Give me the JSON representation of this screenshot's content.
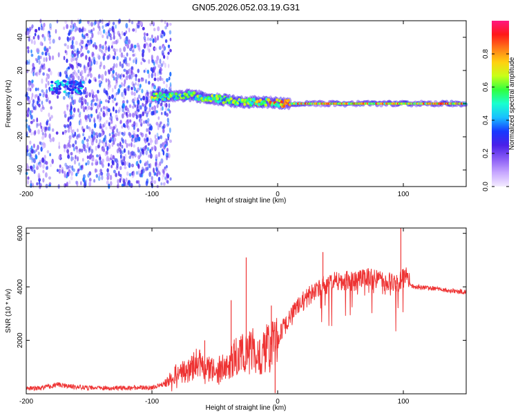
{
  "title": "GN05.2026.052.03.19.G31",
  "colors": {
    "snr_line": "#ee3333",
    "frame": "#000000",
    "sat_lowband": "#6a2be0",
    "sat_diffuse": "#a070f0",
    "colormap": [
      "#f4ecff",
      "#c8a8ff",
      "#8a5cf5",
      "#4a20e8",
      "#1838ff",
      "#18c0ff",
      "#18ffd0",
      "#30ff40",
      "#c8ff18",
      "#ffd010",
      "#ff7a18",
      "#ff1818",
      "#ff1880"
    ]
  },
  "chart_data": [
    {
      "type": "heatmap",
      "xlabel": "Height of straight line (km)",
      "ylabel": "Frequency (Hz)",
      "xlim": [
        -200,
        150
      ],
      "ylim": [
        -50,
        50
      ],
      "x_ticks": [
        -200,
        -100,
        0,
        100
      ],
      "x_tick_labels": [
        "-200",
        "-100",
        "0",
        "100"
      ],
      "y_ticks": [
        -40,
        -20,
        0,
        20,
        40
      ],
      "y_tick_labels": [
        "-40",
        "-20",
        "0",
        "20",
        "40"
      ],
      "colorbar": {
        "label": "Normalized spectral amplitude",
        "range": [
          0,
          1
        ],
        "ticks": [
          0,
          0.2,
          0.4,
          0.6,
          0.8
        ],
        "tick_labels": [
          "0.0",
          "0.2",
          "0.4",
          "0.6",
          "0.8"
        ]
      },
      "features": [
        {
          "name": "diffuse_noise",
          "x_range": [
            -200,
            -85
          ],
          "freq_range": [
            -50,
            50
          ],
          "amplitude": 0.15
        },
        {
          "name": "low_height_signal_cluster",
          "x_range": [
            -180,
            -155
          ],
          "freq_center": 10,
          "amplitude": 0.4
        },
        {
          "name": "main_signal_band",
          "x_range": [
            -100,
            150
          ],
          "freq_center": 0,
          "amplitude": 0.9
        }
      ],
      "band_centerline": [
        {
          "x": -100,
          "freq": 4
        },
        {
          "x": -70,
          "freq": 5
        },
        {
          "x": -50,
          "freq": 3
        },
        {
          "x": -30,
          "freq": 1
        },
        {
          "x": -10,
          "freq": 1
        },
        {
          "x": 10,
          "freq": 0
        },
        {
          "x": 150,
          "freq": 0
        }
      ]
    },
    {
      "type": "line",
      "xlabel": "Height of straight line (km)",
      "ylabel": "SNR (10 * v/v)",
      "xlim": [
        -200,
        150
      ],
      "ylim": [
        0,
        6200
      ],
      "x_ticks": [
        -200,
        -100,
        0,
        100
      ],
      "x_tick_labels": [
        "-200",
        "-100",
        "0",
        "100"
      ],
      "y_ticks": [
        2000,
        4000,
        6000
      ],
      "y_tick_labels": [
        "2000",
        "4000",
        "6000"
      ],
      "series": [
        {
          "name": "SNR",
          "x": [
            -200,
            -190,
            -180,
            -175,
            -170,
            -160,
            -150,
            -140,
            -130,
            -120,
            -110,
            -100,
            -95,
            -90,
            -85,
            -80,
            -75,
            -70,
            -65,
            -60,
            -55,
            -50,
            -45,
            -40,
            -35,
            -30,
            -25,
            -20,
            -15,
            -10,
            -5,
            0,
            5,
            10,
            15,
            20,
            25,
            30,
            40,
            50,
            60,
            70,
            80,
            90,
            95,
            100,
            103,
            106,
            110,
            120,
            130,
            140,
            150
          ],
          "values": [
            200,
            220,
            280,
            350,
            300,
            260,
            230,
            220,
            210,
            220,
            230,
            240,
            300,
            380,
            550,
            750,
            900,
            950,
            1100,
            1050,
            900,
            850,
            950,
            1100,
            1300,
            1500,
            1650,
            1600,
            1500,
            1650,
            1850,
            2050,
            2500,
            2850,
            3150,
            3450,
            3650,
            3900,
            4100,
            4250,
            4200,
            4350,
            4250,
            4200,
            4100,
            4300,
            4400,
            4050,
            4000,
            3950,
            3900,
            3850,
            3800
          ]
        }
      ],
      "notable_spikes": [
        {
          "x": -58,
          "value": 2000
        },
        {
          "x": -37,
          "value": 3500
        },
        {
          "x": -25,
          "value": 5100
        },
        {
          "x": -5,
          "value": 3300
        },
        {
          "x": 36,
          "value": 5300
        },
        {
          "x": 98,
          "value": 6200
        }
      ]
    }
  ]
}
